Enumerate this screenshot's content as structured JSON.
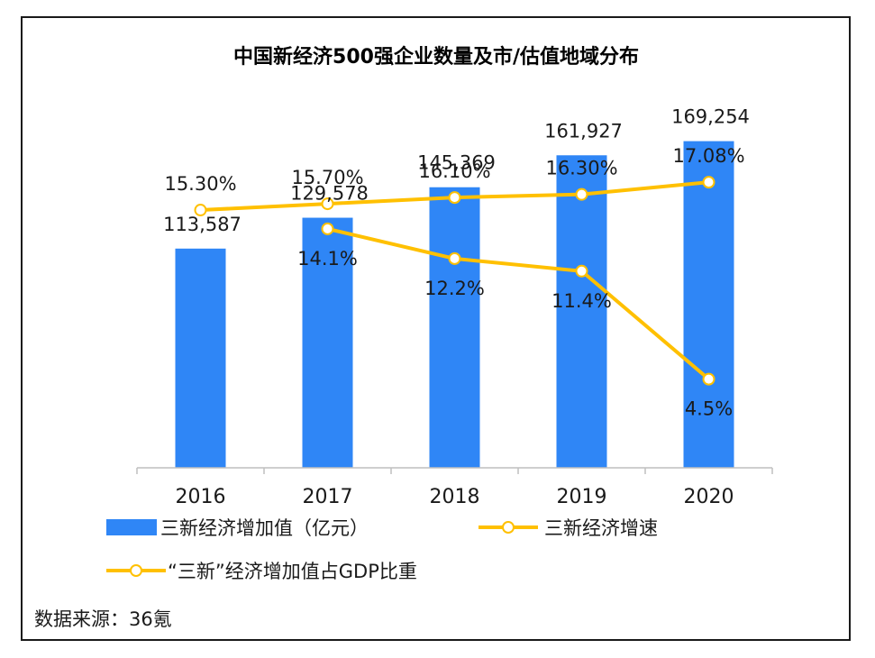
{
  "chart_data": {
    "type": "bar",
    "title": "中国新经济500强企业数量及市/估值地域分布",
    "categories": [
      "2016",
      "2017",
      "2018",
      "2019",
      "2020"
    ],
    "bar_series": {
      "name": "三新经济增加值（亿元）",
      "values": [
        113587,
        129578,
        145369,
        161927,
        169254
      ],
      "labels": [
        "113,587",
        "129,578",
        "145,369",
        "161,927",
        "169,254"
      ],
      "color": "#2f86f6"
    },
    "line_series": [
      {
        "name": "三新经济增速",
        "x": [
          "2017",
          "2018",
          "2019",
          "2020"
        ],
        "values": [
          14.1,
          12.2,
          11.4,
          4.5
        ],
        "labels": [
          "14.1%",
          "12.2%",
          "11.4%",
          "4.5%"
        ],
        "color": "#ffc000"
      },
      {
        "name": "“三新”经济增加值占GDP比重",
        "x": [
          "2016",
          "2017",
          "2018",
          "2019",
          "2020"
        ],
        "values": [
          15.3,
          15.7,
          16.1,
          16.3,
          17.08
        ],
        "labels": [
          "15.30%",
          "15.70%",
          "16.10%",
          "16.30%",
          "17.08%"
        ],
        "color": "#ffc000"
      }
    ],
    "legend_position": "bottom",
    "grid": false
  },
  "source_text": "数据来源：36氪"
}
